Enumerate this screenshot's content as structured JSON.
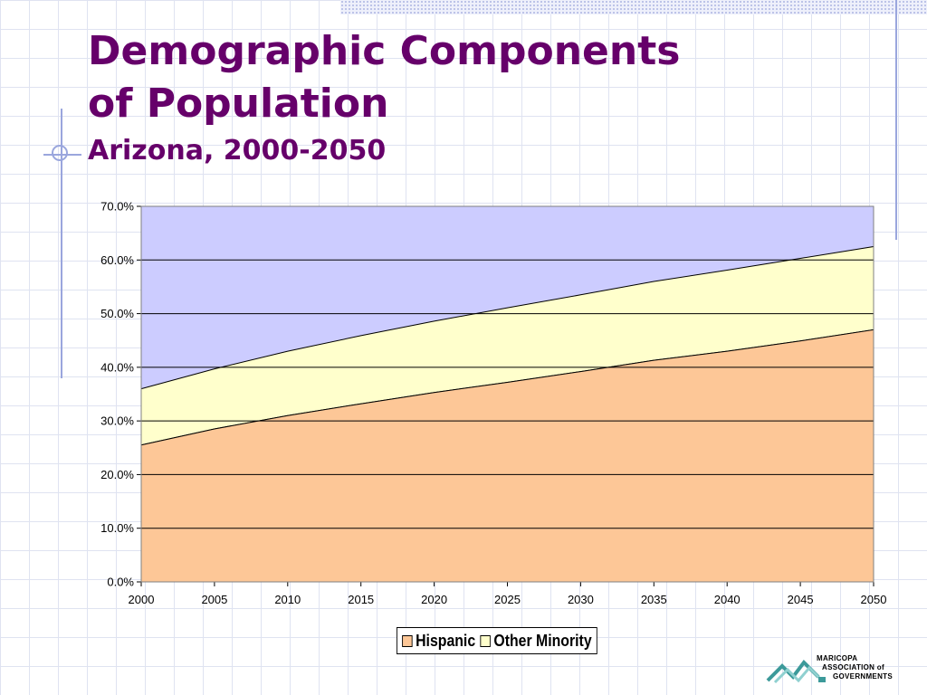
{
  "slide": {
    "title_lines": [
      "Demographic Components",
      "of Population"
    ],
    "subtitle": "Arizona, 2000-2050"
  },
  "logo": {
    "lines": [
      "MARICOPA",
      "ASSOCIATION of",
      "GOVERNMENTS"
    ]
  },
  "colors": {
    "title": "#66006a",
    "hispanic": "#fdc797",
    "other_minority": "#ffffcc",
    "background_area": "#ccccff",
    "logo_teal": "#3c9a9a"
  },
  "chart_data": {
    "type": "area",
    "stacked": true,
    "x": [
      2000,
      2005,
      2010,
      2015,
      2020,
      2025,
      2030,
      2035,
      2040,
      2045,
      2050
    ],
    "x_tick_labels": [
      "2000",
      "2005",
      "2010",
      "2015",
      "2020",
      "2025",
      "2030",
      "2035",
      "2040",
      "2045",
      "2050"
    ],
    "y_tick_labels": [
      "0.0%",
      "10.0%",
      "20.0%",
      "30.0%",
      "40.0%",
      "50.0%",
      "60.0%",
      "70.0%"
    ],
    "ylim": [
      0,
      70
    ],
    "grid": "horizontal",
    "legend_position": "bottom",
    "series": [
      {
        "name": "Hispanic",
        "values": [
          25.5,
          28.5,
          31.0,
          33.2,
          35.3,
          37.2,
          39.2,
          41.3,
          43.0,
          44.9,
          47.0
        ],
        "color": "#fdc797"
      },
      {
        "name": "Other Minority",
        "values": [
          10.5,
          11.2,
          12.0,
          12.7,
          13.3,
          13.9,
          14.3,
          14.7,
          15.1,
          15.4,
          15.5
        ],
        "color": "#ffffcc"
      }
    ]
  }
}
